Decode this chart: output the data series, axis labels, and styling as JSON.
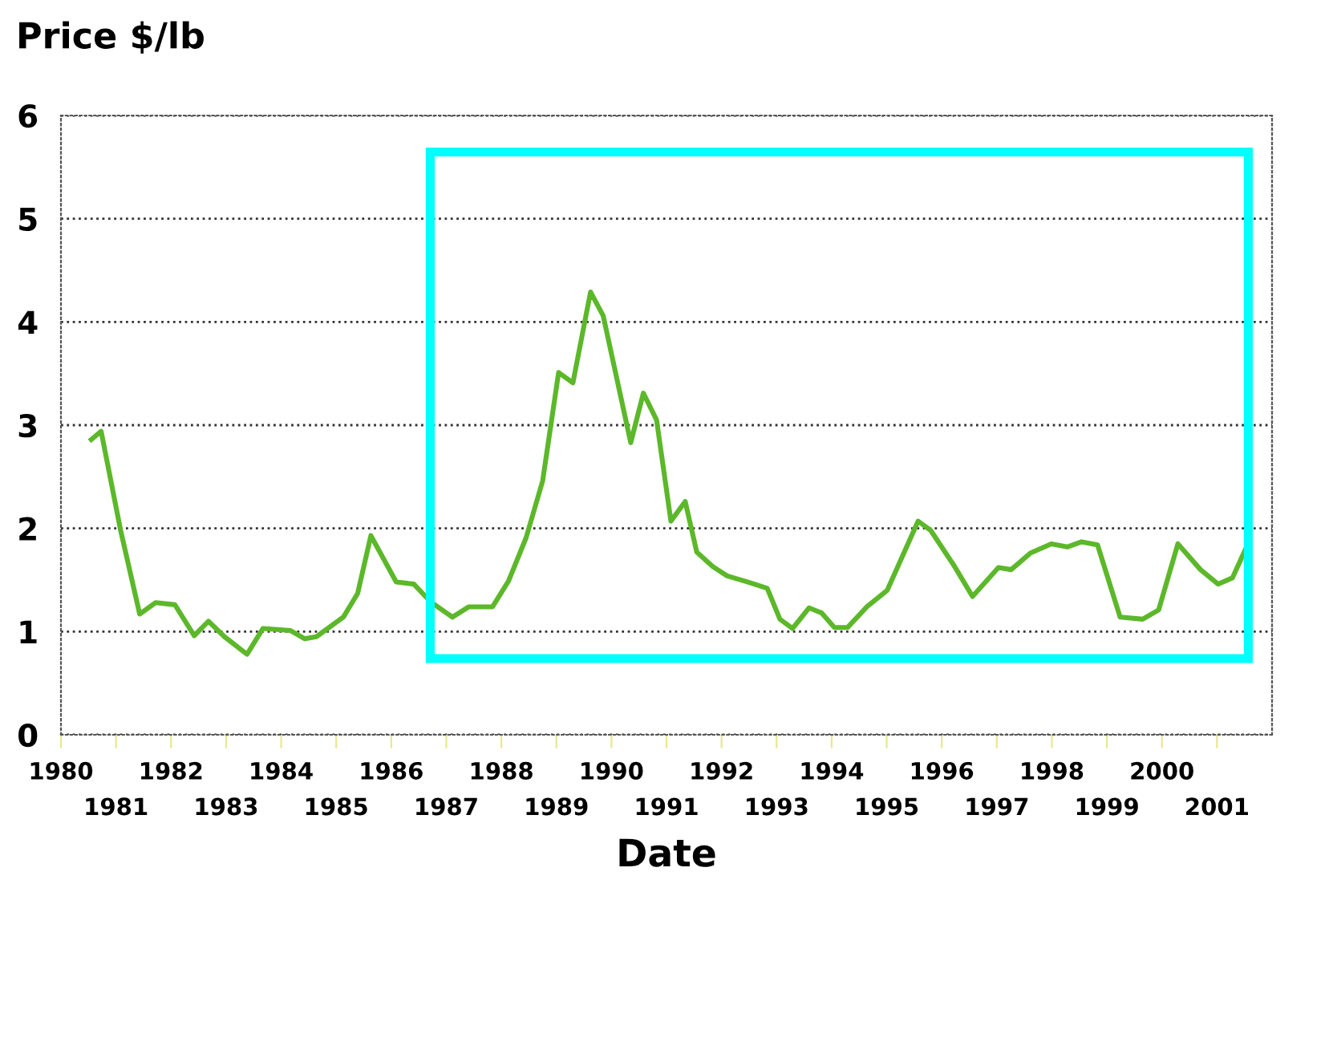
{
  "chart_data": {
    "type": "line",
    "ylabel": "Price $/lb",
    "xlabel": "Date",
    "x": [
      1980.55,
      1980.73,
      1981.08,
      1981.43,
      1981.72,
      1982.07,
      1982.42,
      1982.68,
      1982.97,
      1983.38,
      1983.67,
      1984.17,
      1984.43,
      1984.64,
      1985.13,
      1985.39,
      1985.63,
      1986.09,
      1986.41,
      1986.71,
      1987.11,
      1987.41,
      1987.84,
      1988.13,
      1988.45,
      1988.75,
      1989.04,
      1989.3,
      1989.62,
      1989.85,
      1990.35,
      1990.58,
      1990.82,
      1991.08,
      1991.34,
      1991.55,
      1991.84,
      1992.1,
      1992.48,
      1992.83,
      1993.06,
      1993.29,
      1993.59,
      1993.82,
      1994.05,
      1994.29,
      1994.64,
      1995.01,
      1995.57,
      1995.8,
      1996.21,
      1996.56,
      1997.03,
      1997.26,
      1997.61,
      1997.99,
      1998.28,
      1998.54,
      1998.83,
      1999.24,
      1999.65,
      1999.94,
      2000.29,
      2000.7,
      2001.02,
      2001.28,
      2001.52
    ],
    "series": [
      {
        "color": "#5cb82a",
        "values": [
          2.86,
          2.94,
          1.99,
          1.17,
          1.28,
          1.26,
          0.96,
          1.1,
          0.95,
          0.78,
          1.03,
          1.01,
          0.93,
          0.95,
          1.14,
          1.37,
          1.93,
          1.48,
          1.46,
          1.29,
          1.14,
          1.24,
          1.24,
          1.49,
          1.91,
          2.46,
          3.51,
          3.41,
          4.29,
          4.06,
          2.83,
          3.31,
          3.05,
          2.07,
          2.26,
          1.77,
          1.63,
          1.54,
          1.48,
          1.42,
          1.12,
          1.03,
          1.23,
          1.18,
          1.04,
          1.04,
          1.24,
          1.4,
          2.07,
          1.98,
          1.65,
          1.34,
          1.62,
          1.6,
          1.76,
          1.85,
          1.82,
          1.87,
          1.84,
          1.14,
          1.12,
          1.21,
          1.85,
          1.6,
          1.46,
          1.52,
          1.8
        ]
      }
    ],
    "xlim": [
      1980,
      2002
    ],
    "xticks": [
      1980,
      1982,
      1984,
      1986,
      1988,
      1990,
      1992,
      1994,
      1996,
      1998,
      2000
    ],
    "x2lim": [
      1980,
      2002
    ],
    "x2ticks": [
      1981,
      1983,
      1985,
      1987,
      1989,
      1991,
      1993,
      1995,
      1997,
      1999,
      2001
    ],
    "ylim": [
      0,
      6
    ],
    "yticks": [
      0,
      1,
      2,
      3,
      4,
      5,
      6
    ],
    "grid": "y",
    "marker": "none",
    "line_style": "solid"
  }
}
